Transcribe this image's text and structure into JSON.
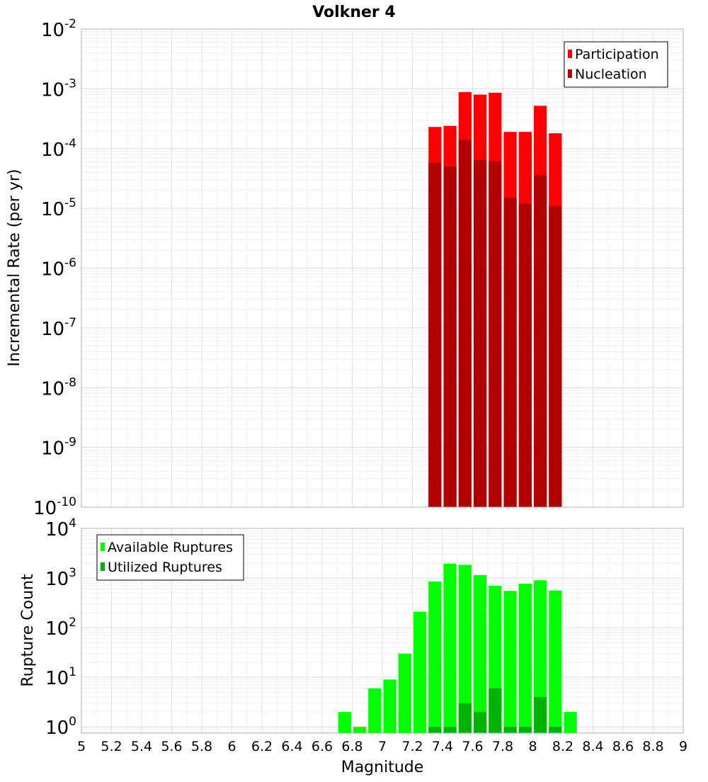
{
  "chart_data": [
    {
      "type": "bar",
      "title": "Volkner 4",
      "xlabel": "",
      "ylabel": "Incremental Rate (per yr)",
      "y_scale": "log",
      "ylim": [
        1e-10,
        0.01
      ],
      "xlim": [
        5,
        9
      ],
      "grid": true,
      "legend_placement": "top-right",
      "bin_width": 0.1,
      "y_ticks": [
        {
          "base": "10",
          "exp": "-10"
        },
        {
          "base": "10",
          "exp": "-9"
        },
        {
          "base": "10",
          "exp": "-8"
        },
        {
          "base": "10",
          "exp": "-7"
        },
        {
          "base": "10",
          "exp": "-6"
        },
        {
          "base": "10",
          "exp": "-5"
        },
        {
          "base": "10",
          "exp": "-4"
        },
        {
          "base": "10",
          "exp": "-3"
        },
        {
          "base": "10",
          "exp": "-2"
        }
      ],
      "series": [
        {
          "name": "Participation",
          "color": "#ff0000",
          "x": [
            7.35,
            7.45,
            7.55,
            7.65,
            7.75,
            7.85,
            7.95,
            8.05,
            8.15
          ],
          "values": [
            0.00023,
            0.00024,
            0.00088,
            0.0008,
            0.00086,
            0.00019,
            0.00019,
            0.00052,
            0.00018
          ]
        },
        {
          "name": "Nucleation",
          "color": "#b20000",
          "x": [
            7.35,
            7.45,
            7.55,
            7.65,
            7.75,
            7.85,
            7.95,
            8.05,
            8.15
          ],
          "values": [
            5.8e-05,
            5e-05,
            0.00014,
            6.4e-05,
            6.2e-05,
            1.5e-05,
            1.2e-05,
            3.6e-05,
            1.1e-05
          ]
        }
      ]
    },
    {
      "type": "bar",
      "title": "",
      "xlabel": "Magnitude",
      "ylabel": "Rupture Count",
      "y_scale": "log",
      "ylim": [
        0.75,
        10000
      ],
      "xlim": [
        5,
        9
      ],
      "grid": true,
      "legend_placement": "top-left",
      "bin_width": 0.1,
      "x_ticks": [
        "5",
        "5.2",
        "5.4",
        "5.6",
        "5.8",
        "6",
        "6.2",
        "6.4",
        "6.6",
        "6.8",
        "7",
        "7.2",
        "7.4",
        "7.6",
        "7.8",
        "8",
        "8.2",
        "8.4",
        "8.6",
        "8.8",
        "9"
      ],
      "y_ticks": [
        {
          "base": "10",
          "exp": "0"
        },
        {
          "base": "10",
          "exp": "1"
        },
        {
          "base": "10",
          "exp": "2"
        },
        {
          "base": "10",
          "exp": "3"
        },
        {
          "base": "10",
          "exp": "4"
        }
      ],
      "series": [
        {
          "name": "Available Ruptures",
          "color": "#00ff00",
          "x": [
            6.75,
            6.85,
            6.95,
            7.05,
            7.15,
            7.25,
            7.35,
            7.45,
            7.55,
            7.65,
            7.75,
            7.85,
            7.95,
            8.05,
            8.15,
            8.25
          ],
          "values": [
            2,
            1,
            6,
            9,
            30,
            210,
            850,
            1950,
            1850,
            1150,
            700,
            550,
            770,
            900,
            560,
            2
          ]
        },
        {
          "name": "Utilized Ruptures",
          "color": "#00b200",
          "x": [
            7.35,
            7.45,
            7.55,
            7.65,
            7.75,
            7.85,
            7.95,
            8.05,
            8.15
          ],
          "values": [
            1,
            1,
            3,
            2,
            6,
            1,
            1,
            4,
            1
          ]
        }
      ]
    }
  ]
}
